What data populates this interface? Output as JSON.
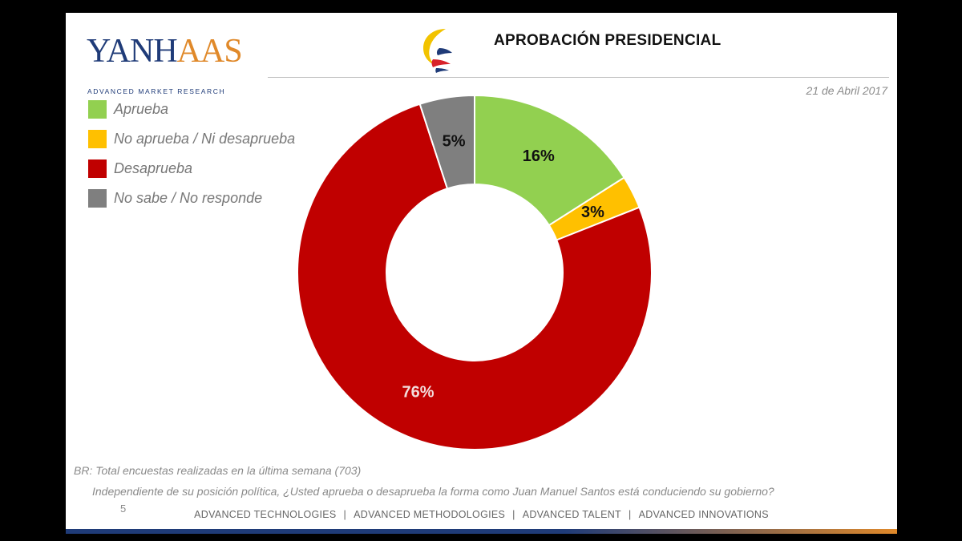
{
  "header": {
    "logo_text": "YANHAAS",
    "logo_subtitle": "ADVANCED MARKET RESEARCH",
    "title": "APROBACIÓN PRESIDENCIAL",
    "date": "21 de Abril 2017"
  },
  "chart_data": {
    "type": "pie",
    "donut": true,
    "start_angle_deg": 0,
    "direction": "clockwise",
    "legend_position": "top-left",
    "categories": [
      "Aprueba",
      "No aprueba / Ni desaprueba",
      "Desaprueba",
      "No sabe /  No responde"
    ],
    "values": [
      16,
      3,
      76,
      5
    ],
    "data_labels": [
      "16%",
      "3%",
      "76%",
      "5%"
    ],
    "colors": [
      "#92d050",
      "#ffc000",
      "#c00000",
      "#7f7f7f"
    ],
    "label_colors": [
      "#111111",
      "#111111",
      "#f2dcdb",
      "#111111"
    ]
  },
  "footer": {
    "base_note": "BR: Total encuestas realizadas en la última semana (703)",
    "question": "Independiente de su posición política, ¿Usted aprueba o desaprueba la forma como Juan Manuel Santos está conduciendo su gobierno?",
    "page_number": "5",
    "tagline_items": [
      "ADVANCED TECHNOLOGIES",
      "ADVANCED METHODOLOGIES",
      "ADVANCED TALENT",
      "ADVANCED INNOVATIONS"
    ],
    "tagline_separator": "|"
  }
}
